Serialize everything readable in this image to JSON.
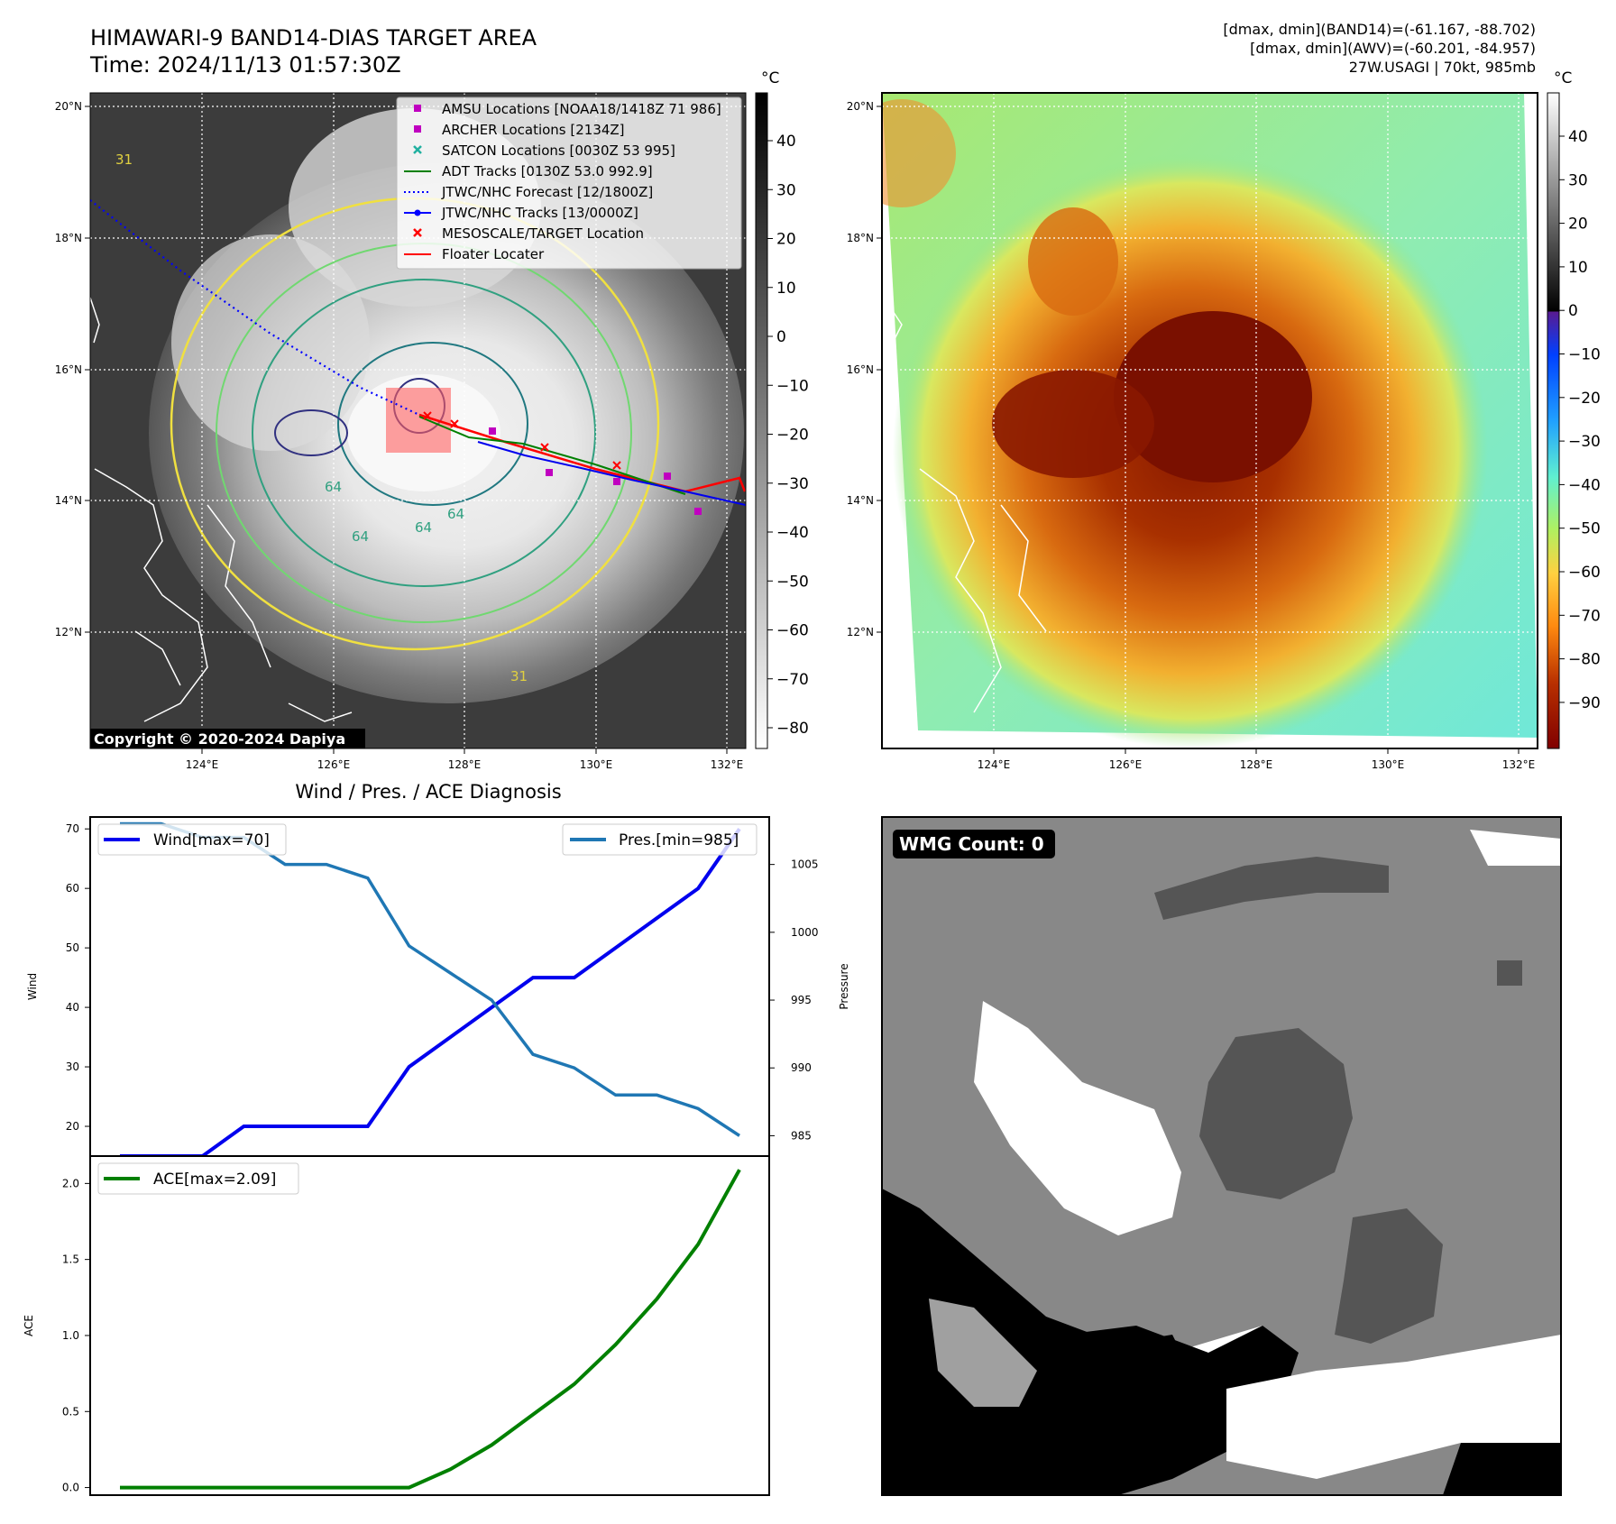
{
  "header": {
    "title_line1": "HIMAWARI-9 BAND14-DIAS TARGET AREA",
    "title_line2": "Time: 2024/11/13 01:57:30Z",
    "info_line1": "[dmax, dmin](BAND14)=(-61.167, -88.702)",
    "info_line2": "[dmax, dmin](AWV)=(-60.201, -84.957)",
    "info_line3": "27W.USAGI | 70kt, 985mb"
  },
  "map_axes": {
    "lon_ticks": [
      "124°E",
      "126°E",
      "128°E",
      "130°E",
      "132°E"
    ],
    "lat_ticks": [
      "20°N",
      "18°N",
      "16°N",
      "14°N",
      "12°N"
    ]
  },
  "ir_panel": {
    "copyright": "Copyright © 2020-2024 Dapiya",
    "colorbar_unit": "°C",
    "colorbar_ticks": [
      "40",
      "30",
      "20",
      "10",
      "0",
      "−10",
      "−20",
      "−30",
      "−40",
      "−50",
      "−60",
      "−70",
      "−80"
    ],
    "contour_labels": [
      "64",
      "64",
      "64",
      "64",
      "31",
      "31"
    ],
    "legend": [
      {
        "label": "AMSU Locations [NOAA18/1418Z 71 986]",
        "marker": "square",
        "color": "#c000c0"
      },
      {
        "label": "ARCHER Locations [2134Z]",
        "marker": "square",
        "color": "#c000c0"
      },
      {
        "label": "SATCON Locations [0030Z 53 995]",
        "marker": "x",
        "color": "#20b0a0"
      },
      {
        "label": "ADT Tracks [0130Z 53.0 992.9]",
        "marker": "line",
        "color": "#008000"
      },
      {
        "label": "JTWC/NHC Forecast [12/1800Z]",
        "marker": "dotted",
        "color": "#0000ff"
      },
      {
        "label": "JTWC/NHC Tracks [13/0000Z]",
        "marker": "line-dot",
        "color": "#0000ff"
      },
      {
        "label": "MESOSCALE/TARGET Location",
        "marker": "x",
        "color": "#ff0000"
      },
      {
        "label": "Floater Locater",
        "marker": "line",
        "color": "#ff0000"
      }
    ]
  },
  "awv_panel": {
    "colorbar_unit": "°C",
    "colorbar_ticks": [
      "40",
      "30",
      "20",
      "10",
      "0",
      "−10",
      "−20",
      "−30",
      "−40",
      "−50",
      "−60",
      "−70",
      "−80",
      "−90"
    ]
  },
  "wmg_panel": {
    "badge": "WMG Count: 0"
  },
  "colors": {
    "wind": "#0000ee",
    "pressure": "#1f77b4",
    "ace": "#008000"
  },
  "chart_data": [
    {
      "type": "line",
      "title": "Wind / Pres. / ACE Diagnosis",
      "ylabel": "Wind",
      "ylabel_right": "Pressure",
      "x": [
        0,
        1,
        2,
        3,
        4,
        5,
        6,
        7,
        8,
        9,
        10,
        11,
        12,
        13,
        14,
        15
      ],
      "ylim": [
        15,
        72
      ],
      "ylim_right": [
        983.5,
        1008.5
      ],
      "yticks": [
        "20",
        "30",
        "40",
        "50",
        "60",
        "70"
      ],
      "yticks_right": [
        "985",
        "990",
        "995",
        "1000",
        "1005"
      ],
      "series": [
        {
          "name": "Wind[max=70]",
          "axis": "left",
          "values": [
            15,
            15,
            15,
            20,
            20,
            20,
            20,
            30,
            35,
            40,
            45,
            45,
            50,
            55,
            60,
            70
          ]
        },
        {
          "name": "Pres.[min=985]",
          "axis": "right",
          "values": [
            1008,
            1008,
            1007,
            1007,
            1005,
            1005,
            1004,
            999,
            997,
            995,
            991,
            990,
            988,
            988,
            987,
            985
          ]
        }
      ]
    },
    {
      "type": "line",
      "ylabel": "ACE",
      "x": [
        0,
        1,
        2,
        3,
        4,
        5,
        6,
        7,
        8,
        9,
        10,
        11,
        12,
        13,
        14,
        15
      ],
      "ylim": [
        -0.05,
        2.18
      ],
      "yticks": [
        "0.0",
        "0.5",
        "1.0",
        "1.5",
        "2.0"
      ],
      "series": [
        {
          "name": "ACE[max=2.09]",
          "values": [
            0,
            0,
            0,
            0,
            0,
            0,
            0,
            0,
            0.12,
            0.28,
            0.48,
            0.68,
            0.94,
            1.24,
            1.6,
            2.09
          ]
        }
      ]
    }
  ]
}
